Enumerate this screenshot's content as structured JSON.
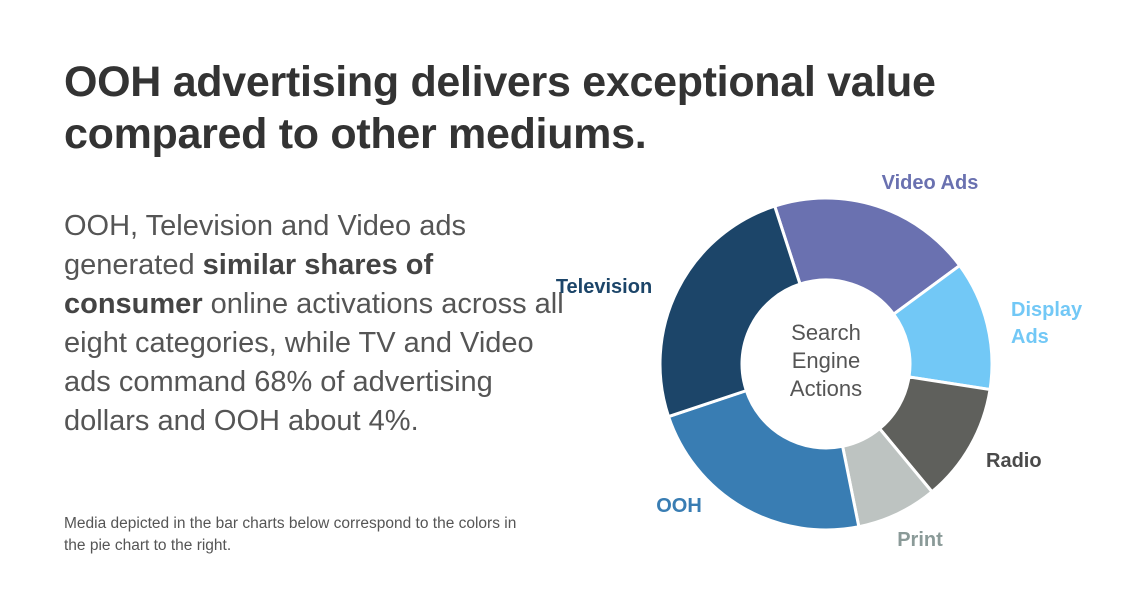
{
  "title_line1": "OOH advertising delivers exceptional value",
  "title_line2": "compared to other mediums.",
  "body": {
    "part1": "OOH, Television and Video ads generated ",
    "bold": "similar shares of consumer",
    "part2": " online activations across all eight categories, while TV and Video ads command 68% of advertising dollars and OOH about 4%."
  },
  "footnote": "Media depicted in the bar charts below correspond to the colors in the pie chart to the right.",
  "chart_data": {
    "type": "pie",
    "center_label": [
      "Search",
      "Engine",
      "Actions"
    ],
    "slices": [
      {
        "label": [
          "Video Ads"
        ],
        "value": 19,
        "color": "#6a71b0",
        "label_color": "#6a71b0"
      },
      {
        "label": [
          "Display",
          "Ads"
        ],
        "value": 12,
        "color": "#72c8f6",
        "label_color": "#72c8f6"
      },
      {
        "label": [
          "Radio"
        ],
        "value": 11,
        "color": "#5f605c",
        "label_color": "#4a4a4a"
      },
      {
        "label": [
          "Print"
        ],
        "value": 7.5,
        "color": "#bdc3c1",
        "label_color": "#8a9a98"
      },
      {
        "label": [
          "OOH"
        ],
        "value": 22,
        "color": "#397db3",
        "label_color": "#397db3"
      },
      {
        "label": [
          "Television"
        ],
        "value": 24,
        "color": "#1c4569",
        "label_color": "#1c4569"
      }
    ]
  }
}
